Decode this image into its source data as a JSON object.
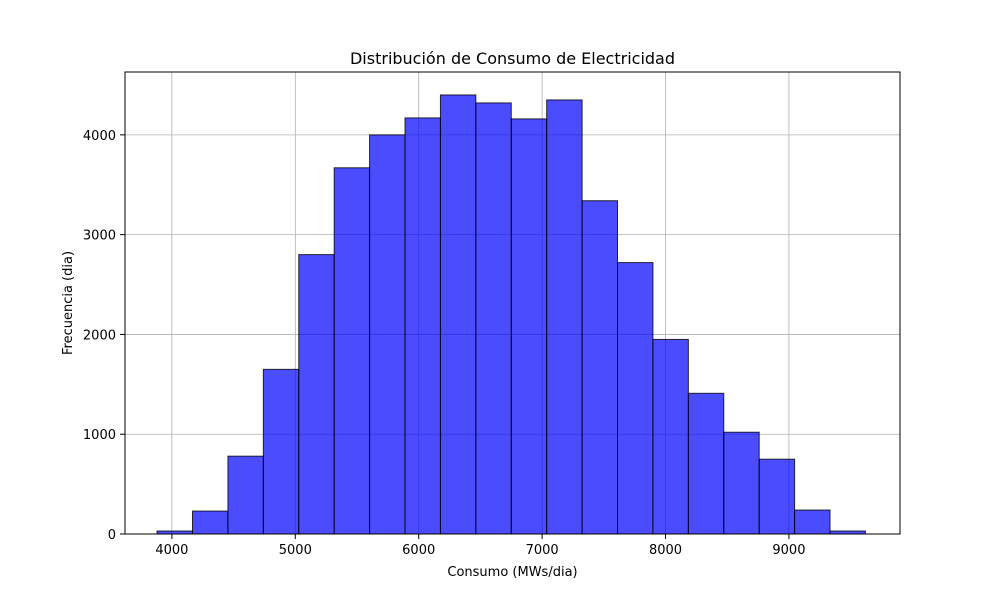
{
  "chart_data": {
    "type": "bar",
    "subtype": "histogram",
    "title": "Distribución de Consumo de Electricidad",
    "xlabel": "Consumo (MWs/dia)",
    "ylabel": "Frecuencia (dia)",
    "xlim": [
      3620,
      9900
    ],
    "ylim": [
      0,
      4630
    ],
    "xticks": [
      4000,
      5000,
      6000,
      7000,
      8000,
      9000
    ],
    "yticks": [
      0,
      1000,
      2000,
      3000,
      4000
    ],
    "grid": true,
    "bin_edges": [
      3880,
      4167,
      4454,
      4741,
      5028,
      5315,
      5602,
      5889,
      6176,
      6463,
      6750,
      7037,
      7324,
      7611,
      7898,
      8185,
      8472,
      8759,
      9046,
      9333,
      9620
    ],
    "values": [
      30,
      230,
      780,
      1650,
      2800,
      3670,
      4000,
      4170,
      4400,
      4320,
      4160,
      4350,
      3340,
      2720,
      1950,
      1410,
      1020,
      750,
      240,
      30
    ],
    "bar_color": "#0000ff",
    "bar_opacity": 0.7,
    "edge_color": "#000000"
  }
}
